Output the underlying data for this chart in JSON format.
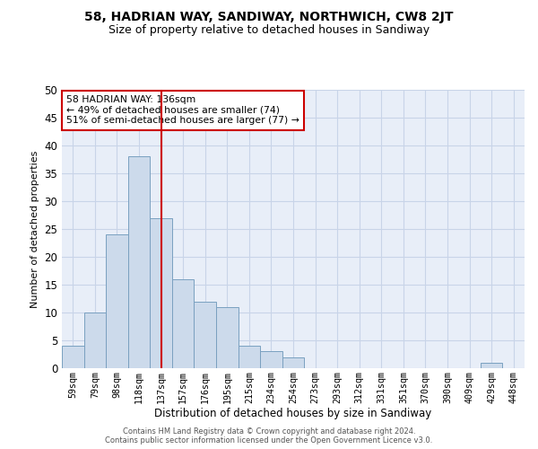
{
  "title": "58, HADRIAN WAY, SANDIWAY, NORTHWICH, CW8 2JT",
  "subtitle": "Size of property relative to detached houses in Sandiway",
  "xlabel": "Distribution of detached houses by size in Sandiway",
  "ylabel": "Number of detached properties",
  "categories": [
    "59sqm",
    "79sqm",
    "98sqm",
    "118sqm",
    "137sqm",
    "157sqm",
    "176sqm",
    "195sqm",
    "215sqm",
    "234sqm",
    "254sqm",
    "273sqm",
    "293sqm",
    "312sqm",
    "331sqm",
    "351sqm",
    "370sqm",
    "390sqm",
    "409sqm",
    "429sqm",
    "448sqm"
  ],
  "values": [
    4,
    10,
    24,
    38,
    27,
    16,
    12,
    11,
    4,
    3,
    2,
    0,
    0,
    0,
    0,
    0,
    0,
    0,
    0,
    1,
    0
  ],
  "bar_color": "#ccdaeb",
  "bar_edge_color": "#7aa0c0",
  "vline_index": 4,
  "vline_color": "#cc0000",
  "annotation_line1": "58 HADRIAN WAY: 136sqm",
  "annotation_line2": "← 49% of detached houses are smaller (74)",
  "annotation_line3": "51% of semi-detached houses are larger (77) →",
  "annotation_box_color": "#ffffff",
  "annotation_box_edge": "#cc0000",
  "ylim": [
    0,
    50
  ],
  "yticks": [
    0,
    5,
    10,
    15,
    20,
    25,
    30,
    35,
    40,
    45,
    50
  ],
  "grid_color": "#c8d4e8",
  "background_color": "#e8eef8",
  "title_fontsize": 10,
  "subtitle_fontsize": 9,
  "footer_line1": "Contains HM Land Registry data © Crown copyright and database right 2024.",
  "footer_line2": "Contains public sector information licensed under the Open Government Licence v3.0."
}
